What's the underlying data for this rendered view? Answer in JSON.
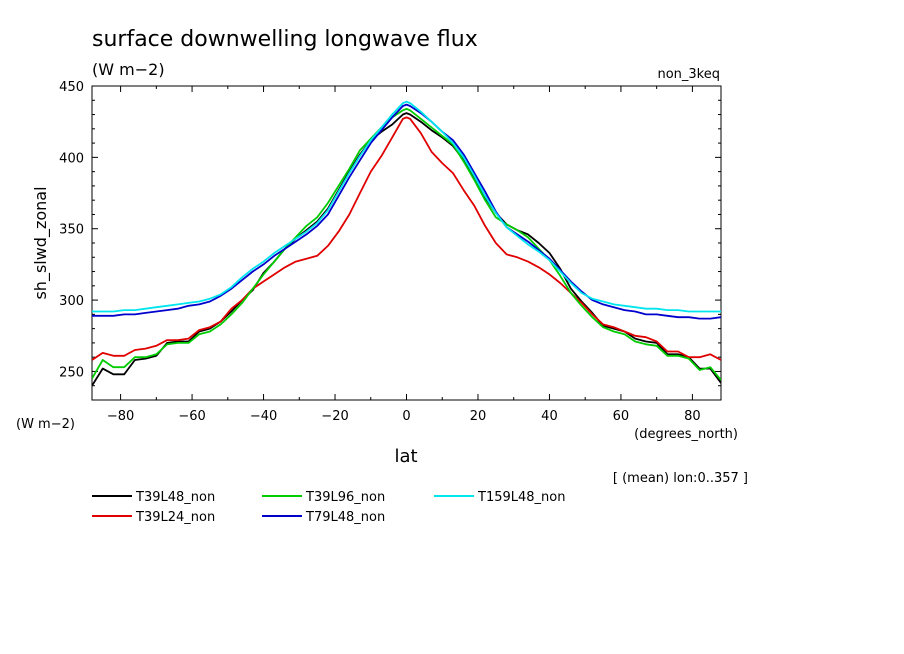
{
  "chart_data": {
    "type": "line",
    "title": "surface downwelling longwave flux",
    "subtitle": "(W m−2)",
    "experiment_label": "non_3keq",
    "xlabel": "lat",
    "xunits": "(degrees_north)",
    "ylabel": "sh_slwd_zonal",
    "yunits": "(W m−2)",
    "footnote": "[ (mean) lon:0..357 ]",
    "xlim": [
      -88,
      88
    ],
    "ylim": [
      230,
      450
    ],
    "x_ticks": [
      -80,
      -60,
      -40,
      -20,
      0,
      20,
      40,
      60,
      80
    ],
    "x_tick_labels": [
      "−80",
      "−60",
      "−40",
      "−20",
      "0",
      "20",
      "40",
      "60",
      "80"
    ],
    "y_ticks": [
      250,
      300,
      350,
      400,
      450
    ],
    "y_tick_labels": [
      "250",
      "300",
      "350",
      "400",
      "450"
    ],
    "x": [
      -88,
      -85,
      -82,
      -79,
      -76,
      -73,
      -70,
      -67,
      -64,
      -61,
      -58,
      -55,
      -52,
      -49,
      -46,
      -43,
      -40,
      -37,
      -34,
      -31,
      -28,
      -25,
      -22,
      -19,
      -16,
      -13,
      -10,
      -7,
      -4,
      -1,
      0,
      1,
      4,
      7,
      10,
      13,
      16,
      19,
      22,
      25,
      28,
      31,
      34,
      37,
      40,
      43,
      46,
      49,
      52,
      55,
      58,
      61,
      64,
      67,
      70,
      73,
      76,
      79,
      82,
      85,
      88
    ],
    "series": [
      {
        "name": "T39L48_non",
        "color": "#000000",
        "values": [
          240,
          252,
          248,
          248,
          258,
          259,
          261,
          270,
          271,
          271,
          278,
          280,
          285,
          292,
          300,
          307,
          319,
          327,
          336,
          343,
          349,
          355,
          364,
          377,
          390,
          402,
          412,
          418,
          423,
          430,
          431,
          430,
          425,
          419,
          414,
          408,
          398,
          385,
          372,
          361,
          353,
          349,
          346,
          340,
          333,
          322,
          308,
          299,
          291,
          282,
          280,
          278,
          273,
          271,
          270,
          262,
          262,
          260,
          252,
          252,
          242
        ]
      },
      {
        "name": "T39L24_non",
        "color": "#e00000",
        "values": [
          258,
          263,
          261,
          261,
          265,
          266,
          268,
          272,
          272,
          273,
          279,
          281,
          285,
          294,
          300,
          308,
          313,
          318,
          323,
          327,
          329,
          331,
          338,
          348,
          360,
          375,
          390,
          401,
          414,
          427,
          428,
          427,
          417,
          404,
          396,
          389,
          377,
          366,
          352,
          340,
          332,
          330,
          327,
          323,
          318,
          312,
          305,
          298,
          290,
          283,
          281,
          278,
          275,
          274,
          271,
          264,
          264,
          260,
          260,
          262,
          258
        ]
      },
      {
        "name": "T39L96_non",
        "color": "#00cc00",
        "values": [
          245,
          258,
          253,
          253,
          260,
          260,
          262,
          269,
          270,
          270,
          276,
          278,
          283,
          290,
          298,
          308,
          318,
          327,
          336,
          344,
          352,
          358,
          368,
          380,
          392,
          405,
          413,
          421,
          428,
          433,
          434,
          433,
          427,
          421,
          415,
          409,
          397,
          384,
          370,
          358,
          353,
          349,
          344,
          336,
          328,
          317,
          305,
          296,
          288,
          281,
          278,
          276,
          271,
          269,
          268,
          261,
          261,
          259,
          251,
          253,
          244
        ]
      },
      {
        "name": "T79L48_non",
        "color": "#0000cc",
        "values": [
          289,
          289,
          289,
          290,
          290,
          291,
          292,
          293,
          294,
          296,
          297,
          299,
          303,
          308,
          314,
          320,
          325,
          331,
          336,
          341,
          346,
          352,
          360,
          373,
          386,
          398,
          410,
          419,
          428,
          436,
          437,
          436,
          431,
          425,
          418,
          412,
          402,
          389,
          376,
          362,
          351,
          346,
          341,
          335,
          329,
          321,
          313,
          306,
          300,
          297,
          295,
          293,
          292,
          290,
          290,
          289,
          288,
          288,
          287,
          287,
          288
        ]
      },
      {
        "name": "T159L48_non",
        "color": "#00e5ee",
        "values": [
          292,
          292,
          292,
          293,
          293,
          294,
          295,
          296,
          297,
          298,
          299,
          301,
          304,
          309,
          316,
          322,
          327,
          333,
          338,
          343,
          348,
          354,
          363,
          376,
          389,
          401,
          412,
          421,
          430,
          438,
          439,
          438,
          432,
          425,
          418,
          410,
          400,
          387,
          373,
          361,
          351,
          345,
          339,
          334,
          328,
          320,
          312,
          305,
          301,
          299,
          297,
          296,
          295,
          294,
          294,
          293,
          293,
          292,
          292,
          292,
          292
        ]
      }
    ]
  }
}
